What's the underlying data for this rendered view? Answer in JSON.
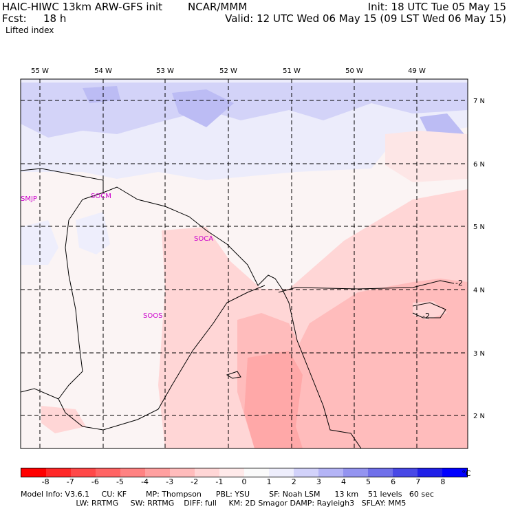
{
  "header": {
    "model_title": "HAIC-HIWC 13km ARW-GFS init",
    "org": "NCAR/MMM",
    "init": "Init: 18 UTC Tue 05 May 15",
    "fcst_label": "Fcst:",
    "fcst_value": "18 h",
    "valid": "Valid: 12 UTC Wed 06 May 15 (09 LST Wed 06 May 15)",
    "field": "Lifted index"
  },
  "map": {
    "lon_labels": [
      "55 W",
      "54 W",
      "53 W",
      "52 W",
      "51 W",
      "50 W",
      "49 W"
    ],
    "lat_labels": [
      "7 N",
      "6 N",
      "5 N",
      "4 N",
      "3 N",
      "2 N"
    ],
    "stations": [
      "SMJP",
      "SOCM",
      "SOCA",
      "SOOS"
    ],
    "contour_labels": [
      "-2",
      "-2"
    ]
  },
  "colorbar": {
    "colors": [
      "#ff0000",
      "#ff2828",
      "#ff4848",
      "#ff6464",
      "#ff8282",
      "#ffa0a0",
      "#ffbcbc",
      "#ffd6d6",
      "#ffeaea",
      "#fafafa",
      "#eeeefc",
      "#d2d2fa",
      "#b4b4f6",
      "#9494f0",
      "#7070ea",
      "#4848e6",
      "#2020e8",
      "#0000ff"
    ],
    "labels": [
      "-8",
      "-7",
      "-6",
      "-5",
      "-4",
      "-3",
      "-2",
      "-1",
      "0",
      "1",
      "2",
      "3",
      "4",
      "5",
      "6",
      "7",
      "8"
    ],
    "unit": "°C"
  },
  "footer": {
    "line1": "Model Info: V3.6.1     CU: KF        MP: Thompson      PBL: YSU        SF: Noah LSM      13 km    51 levels   60 sec",
    "line2": "                       LW: RRTMG     SW: RRTMG    DIFF: full     KM: 2D Smagor DAMP: Rayleigh3   SFLAY: MM5"
  }
}
